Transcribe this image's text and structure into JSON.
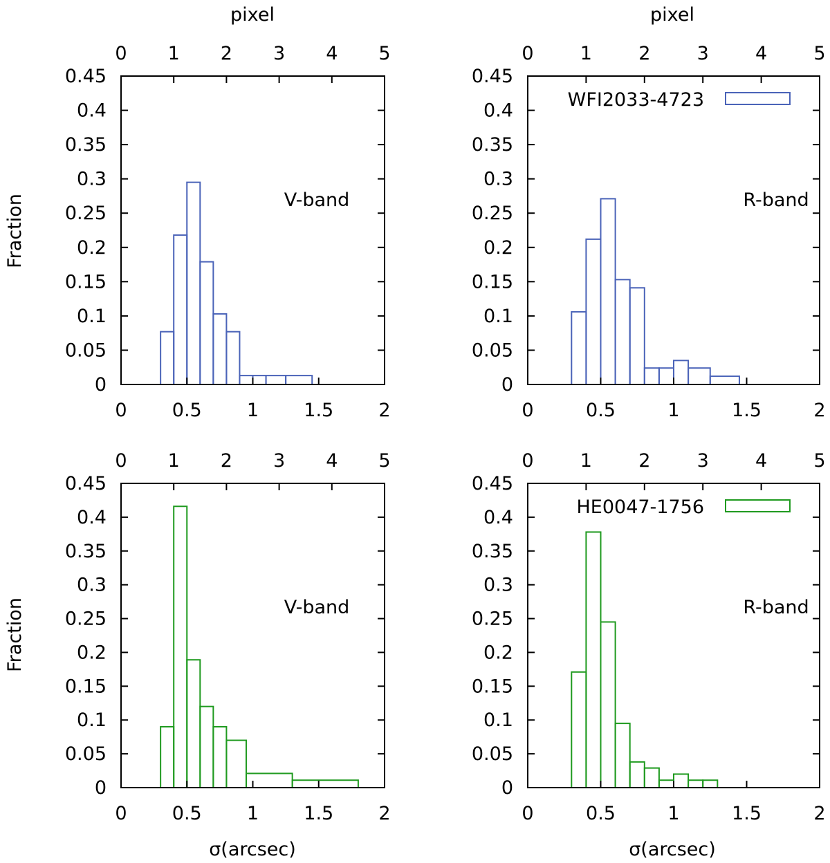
{
  "figure": {
    "ylabel": "Fraction",
    "xlabel": "σ(arcsec)",
    "top_axis_label": "pixel"
  },
  "chart_data": [
    {
      "type": "histogram",
      "id": "p1",
      "band_label": "V-band",
      "color": "#4a63b8",
      "legend": null,
      "xlim": [
        0,
        2
      ],
      "ylim": [
        0,
        0.45
      ],
      "x_ticks": [
        "0",
        "0.5",
        "1",
        "1.5",
        "2"
      ],
      "y_ticks": [
        "0",
        "0.05",
        "0.1",
        "0.15",
        "0.2",
        "0.25",
        "0.3",
        "0.35",
        "0.4",
        "0.45"
      ],
      "top_axis": {
        "label": "pixel",
        "xlim": [
          0,
          5
        ],
        "ticks": [
          "0",
          "1",
          "2",
          "3",
          "4",
          "5"
        ]
      },
      "bins": [
        {
          "x0": 0.3,
          "x1": 0.4,
          "value": 0.077
        },
        {
          "x0": 0.4,
          "x1": 0.5,
          "value": 0.218
        },
        {
          "x0": 0.5,
          "x1": 0.6,
          "value": 0.295
        },
        {
          "x0": 0.6,
          "x1": 0.7,
          "value": 0.179
        },
        {
          "x0": 0.7,
          "x1": 0.8,
          "value": 0.103
        },
        {
          "x0": 0.8,
          "x1": 0.9,
          "value": 0.077
        },
        {
          "x0": 0.9,
          "x1": 1.0,
          "value": 0.013
        },
        {
          "x0": 1.0,
          "x1": 1.1,
          "value": 0.013
        },
        {
          "x0": 1.1,
          "x1": 1.25,
          "value": 0.013
        },
        {
          "x0": 1.25,
          "x1": 1.45,
          "value": 0.013
        }
      ]
    },
    {
      "type": "histogram",
      "id": "p2",
      "band_label": "R-band",
      "color": "#4a63b8",
      "legend": "WFI2033-4723",
      "xlim": [
        0,
        2
      ],
      "ylim": [
        0,
        0.45
      ],
      "x_ticks": [
        "0",
        "0.5",
        "1",
        "1.5",
        "2"
      ],
      "y_ticks": [
        "0",
        "0.05",
        "0.1",
        "0.15",
        "0.2",
        "0.25",
        "0.3",
        "0.35",
        "0.4",
        "0.45"
      ],
      "top_axis": {
        "label": "pixel",
        "xlim": [
          0,
          5
        ],
        "ticks": [
          "0",
          "1",
          "2",
          "3",
          "4",
          "5"
        ]
      },
      "bins": [
        {
          "x0": 0.3,
          "x1": 0.4,
          "value": 0.106
        },
        {
          "x0": 0.4,
          "x1": 0.5,
          "value": 0.212
        },
        {
          "x0": 0.5,
          "x1": 0.6,
          "value": 0.271
        },
        {
          "x0": 0.6,
          "x1": 0.7,
          "value": 0.153
        },
        {
          "x0": 0.7,
          "x1": 0.8,
          "value": 0.141
        },
        {
          "x0": 0.8,
          "x1": 0.9,
          "value": 0.024
        },
        {
          "x0": 0.9,
          "x1": 1.0,
          "value": 0.024
        },
        {
          "x0": 1.0,
          "x1": 1.1,
          "value": 0.035
        },
        {
          "x0": 1.1,
          "x1": 1.25,
          "value": 0.024
        },
        {
          "x0": 1.25,
          "x1": 1.45,
          "value": 0.012
        }
      ]
    },
    {
      "type": "histogram",
      "id": "p3",
      "band_label": "V-band",
      "color": "#1f9a1f",
      "legend": null,
      "xlim": [
        0,
        2
      ],
      "ylim": [
        0,
        0.45
      ],
      "x_ticks": [
        "0",
        "0.5",
        "1",
        "1.5",
        "2"
      ],
      "y_ticks": [
        "0",
        "0.05",
        "0.1",
        "0.15",
        "0.2",
        "0.25",
        "0.3",
        "0.35",
        "0.4",
        "0.45"
      ],
      "top_axis": {
        "label": "",
        "xlim": [
          0,
          5
        ],
        "ticks": [
          "0",
          "1",
          "2",
          "3",
          "4",
          "5"
        ]
      },
      "bins": [
        {
          "x0": 0.3,
          "x1": 0.4,
          "value": 0.09
        },
        {
          "x0": 0.4,
          "x1": 0.5,
          "value": 0.416
        },
        {
          "x0": 0.5,
          "x1": 0.6,
          "value": 0.189
        },
        {
          "x0": 0.6,
          "x1": 0.7,
          "value": 0.12
        },
        {
          "x0": 0.7,
          "x1": 0.8,
          "value": 0.09
        },
        {
          "x0": 0.8,
          "x1": 0.95,
          "value": 0.07
        },
        {
          "x0": 0.95,
          "x1": 1.3,
          "value": 0.021
        },
        {
          "x0": 1.3,
          "x1": 1.8,
          "value": 0.011
        }
      ]
    },
    {
      "type": "histogram",
      "id": "p4",
      "band_label": "R-band",
      "color": "#1f9a1f",
      "legend": "HE0047-1756",
      "xlim": [
        0,
        2
      ],
      "ylim": [
        0,
        0.45
      ],
      "x_ticks": [
        "0",
        "0.5",
        "1",
        "1.5",
        "2"
      ],
      "y_ticks": [
        "0",
        "0.05",
        "0.1",
        "0.15",
        "0.2",
        "0.25",
        "0.3",
        "0.35",
        "0.4",
        "0.45"
      ],
      "top_axis": {
        "label": "",
        "xlim": [
          0,
          5
        ],
        "ticks": [
          "0",
          "1",
          "2",
          "3",
          "4",
          "5"
        ]
      },
      "bins": [
        {
          "x0": 0.3,
          "x1": 0.4,
          "value": 0.171
        },
        {
          "x0": 0.4,
          "x1": 0.5,
          "value": 0.378
        },
        {
          "x0": 0.5,
          "x1": 0.6,
          "value": 0.245
        },
        {
          "x0": 0.6,
          "x1": 0.7,
          "value": 0.095
        },
        {
          "x0": 0.7,
          "x1": 0.8,
          "value": 0.038
        },
        {
          "x0": 0.8,
          "x1": 0.9,
          "value": 0.029
        },
        {
          "x0": 0.9,
          "x1": 1.0,
          "value": 0.011
        },
        {
          "x0": 1.0,
          "x1": 1.1,
          "value": 0.02
        },
        {
          "x0": 1.1,
          "x1": 1.2,
          "value": 0.011
        },
        {
          "x0": 1.2,
          "x1": 1.3,
          "value": 0.011
        }
      ]
    }
  ]
}
